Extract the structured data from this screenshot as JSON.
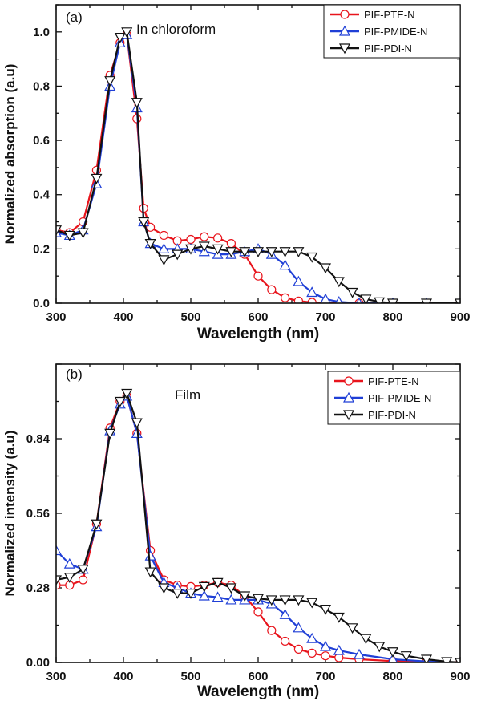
{
  "chart_data": [
    {
      "type": "line",
      "panel_label": "(a)",
      "annotation": "In chloroform",
      "xlabel": "Wavelength (nm)",
      "ylabel": "Normalized absorption (a.u)",
      "xlim": [
        300,
        900
      ],
      "ylim": [
        0,
        1.1
      ],
      "x_ticks": [
        300,
        400,
        500,
        600,
        700,
        800,
        900
      ],
      "y_ticks": [
        0.0,
        0.2,
        0.4,
        0.6,
        0.8,
        1.0
      ],
      "y_tick_labels": [
        "0.0",
        "0.2",
        "0.4",
        "0.6",
        "0.8",
        "1.0"
      ],
      "legend": "top-right",
      "series": [
        {
          "name": "PIF-PTE-N",
          "color": "#e8141c",
          "marker": "circle",
          "points": [
            [
              300,
              0.27
            ],
            [
              320,
              0.26
            ],
            [
              340,
              0.3
            ],
            [
              360,
              0.49
            ],
            [
              380,
              0.84
            ],
            [
              395,
              0.96
            ],
            [
              405,
              0.99
            ],
            [
              420,
              0.68
            ],
            [
              430,
              0.35
            ],
            [
              440,
              0.28
            ],
            [
              460,
              0.25
            ],
            [
              480,
              0.23
            ],
            [
              500,
              0.235
            ],
            [
              520,
              0.245
            ],
            [
              540,
              0.24
            ],
            [
              560,
              0.22
            ],
            [
              580,
              0.18
            ],
            [
              600,
              0.1
            ],
            [
              620,
              0.05
            ],
            [
              640,
              0.02
            ],
            [
              660,
              0.008
            ],
            [
              680,
              0.003
            ],
            [
              700,
              0.0
            ],
            [
              750,
              0.0
            ],
            [
              800,
              0.0
            ],
            [
              850,
              0.0
            ],
            [
              900,
              0.0
            ]
          ]
        },
        {
          "name": "PIF-PMIDE-N",
          "color": "#1f3fd6",
          "marker": "triangle-up",
          "points": [
            [
              300,
              0.26
            ],
            [
              320,
              0.25
            ],
            [
              340,
              0.27
            ],
            [
              360,
              0.44
            ],
            [
              380,
              0.8
            ],
            [
              395,
              0.96
            ],
            [
              405,
              0.99
            ],
            [
              420,
              0.72
            ],
            [
              430,
              0.3
            ],
            [
              440,
              0.22
            ],
            [
              460,
              0.2
            ],
            [
              480,
              0.2
            ],
            [
              500,
              0.2
            ],
            [
              520,
              0.19
            ],
            [
              540,
              0.18
            ],
            [
              560,
              0.18
            ],
            [
              580,
              0.19
            ],
            [
              600,
              0.2
            ],
            [
              620,
              0.18
            ],
            [
              640,
              0.14
            ],
            [
              660,
              0.08
            ],
            [
              680,
              0.04
            ],
            [
              700,
              0.015
            ],
            [
              720,
              0.005
            ],
            [
              750,
              0.0
            ],
            [
              800,
              0.0
            ],
            [
              850,
              0.0
            ],
            [
              900,
              0.0
            ]
          ]
        },
        {
          "name": "PIF-PDI-N",
          "color": "#111111",
          "marker": "triangle-down",
          "points": [
            [
              300,
              0.27
            ],
            [
              320,
              0.25
            ],
            [
              340,
              0.26
            ],
            [
              360,
              0.46
            ],
            [
              380,
              0.82
            ],
            [
              395,
              0.98
            ],
            [
              405,
              1.0
            ],
            [
              420,
              0.74
            ],
            [
              430,
              0.3
            ],
            [
              440,
              0.22
            ],
            [
              460,
              0.16
            ],
            [
              480,
              0.18
            ],
            [
              500,
              0.2
            ],
            [
              520,
              0.21
            ],
            [
              540,
              0.2
            ],
            [
              560,
              0.19
            ],
            [
              580,
              0.19
            ],
            [
              600,
              0.19
            ],
            [
              620,
              0.19
            ],
            [
              640,
              0.19
            ],
            [
              660,
              0.19
            ],
            [
              680,
              0.17
            ],
            [
              700,
              0.13
            ],
            [
              720,
              0.08
            ],
            [
              740,
              0.04
            ],
            [
              760,
              0.015
            ],
            [
              780,
              0.005
            ],
            [
              800,
              0.0
            ],
            [
              850,
              0.0
            ],
            [
              900,
              0.0
            ]
          ]
        }
      ]
    },
    {
      "type": "line",
      "panel_label": "(b)",
      "annotation": "Film",
      "xlabel": "Wavelength (nm)",
      "ylabel": "Normalized intensity (a.u)",
      "xlim": [
        300,
        900
      ],
      "ylim": [
        0,
        1.12
      ],
      "x_ticks": [
        300,
        400,
        500,
        600,
        700,
        800,
        900
      ],
      "y_ticks": [
        0.0,
        0.28,
        0.56,
        0.84
      ],
      "y_tick_labels": [
        "0.00",
        "0.28",
        "0.56",
        "0.84"
      ],
      "legend": "top-right",
      "series": [
        {
          "name": "PIF-PTE-N",
          "color": "#e8141c",
          "marker": "circle",
          "points": [
            [
              300,
              0.29
            ],
            [
              320,
              0.29
            ],
            [
              340,
              0.31
            ],
            [
              360,
              0.52
            ],
            [
              380,
              0.88
            ],
            [
              395,
              0.98
            ],
            [
              405,
              1.0
            ],
            [
              420,
              0.86
            ],
            [
              440,
              0.42
            ],
            [
              460,
              0.31
            ],
            [
              480,
              0.29
            ],
            [
              500,
              0.285
            ],
            [
              520,
              0.29
            ],
            [
              540,
              0.3
            ],
            [
              560,
              0.29
            ],
            [
              580,
              0.25
            ],
            [
              600,
              0.19
            ],
            [
              620,
              0.12
            ],
            [
              640,
              0.08
            ],
            [
              660,
              0.05
            ],
            [
              680,
              0.035
            ],
            [
              700,
              0.025
            ],
            [
              720,
              0.018
            ],
            [
              750,
              0.012
            ],
            [
              800,
              0.005
            ],
            [
              850,
              0.002
            ],
            [
              900,
              0.0
            ]
          ]
        },
        {
          "name": "PIF-PMIDE-N",
          "color": "#1f3fd6",
          "marker": "triangle-up",
          "points": [
            [
              300,
              0.42
            ],
            [
              320,
              0.37
            ],
            [
              340,
              0.35
            ],
            [
              360,
              0.51
            ],
            [
              380,
              0.87
            ],
            [
              395,
              0.97
            ],
            [
              405,
              1.0
            ],
            [
              420,
              0.86
            ],
            [
              440,
              0.4
            ],
            [
              460,
              0.3
            ],
            [
              480,
              0.28
            ],
            [
              500,
              0.26
            ],
            [
              520,
              0.25
            ],
            [
              540,
              0.245
            ],
            [
              560,
              0.235
            ],
            [
              580,
              0.235
            ],
            [
              600,
              0.235
            ],
            [
              620,
              0.22
            ],
            [
              640,
              0.18
            ],
            [
              660,
              0.13
            ],
            [
              680,
              0.09
            ],
            [
              700,
              0.06
            ],
            [
              720,
              0.045
            ],
            [
              750,
              0.03
            ],
            [
              800,
              0.012
            ],
            [
              850,
              0.004
            ],
            [
              900,
              0.0
            ]
          ]
        },
        {
          "name": "PIF-PDI-N",
          "color": "#111111",
          "marker": "triangle-down",
          "points": [
            [
              300,
              0.31
            ],
            [
              320,
              0.32
            ],
            [
              340,
              0.35
            ],
            [
              360,
              0.52
            ],
            [
              380,
              0.86
            ],
            [
              395,
              0.98
            ],
            [
              405,
              1.01
            ],
            [
              420,
              0.9
            ],
            [
              440,
              0.34
            ],
            [
              460,
              0.28
            ],
            [
              480,
              0.26
            ],
            [
              500,
              0.26
            ],
            [
              520,
              0.285
            ],
            [
              540,
              0.3
            ],
            [
              560,
              0.28
            ],
            [
              580,
              0.25
            ],
            [
              600,
              0.24
            ],
            [
              620,
              0.235
            ],
            [
              640,
              0.235
            ],
            [
              660,
              0.235
            ],
            [
              680,
              0.225
            ],
            [
              700,
              0.2
            ],
            [
              720,
              0.17
            ],
            [
              740,
              0.13
            ],
            [
              760,
              0.09
            ],
            [
              780,
              0.06
            ],
            [
              800,
              0.04
            ],
            [
              820,
              0.025
            ],
            [
              850,
              0.012
            ],
            [
              880,
              0.003
            ],
            [
              900,
              0.0
            ]
          ]
        }
      ]
    }
  ]
}
